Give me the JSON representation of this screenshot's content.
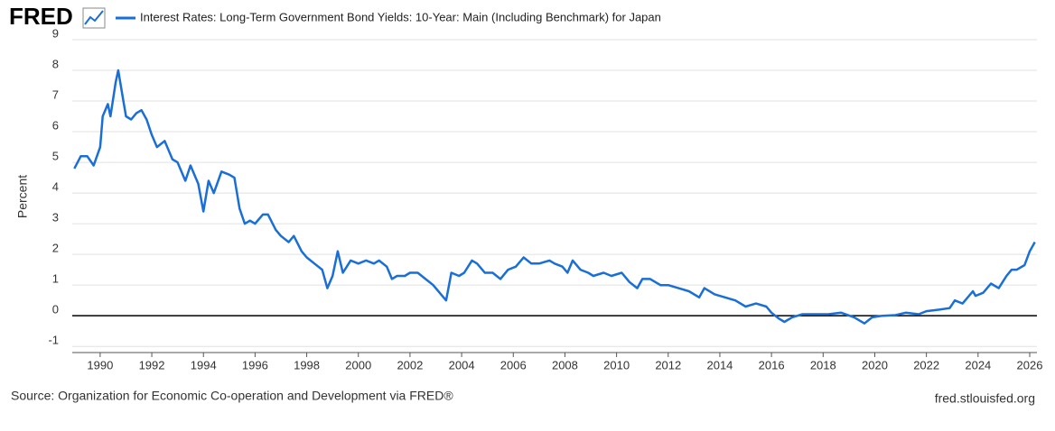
{
  "logo": "FRED",
  "source": "Source: Organization for Economic Co-operation and Development via FRED®",
  "site": "fred.stlouisfed.org",
  "chart_data": {
    "type": "line",
    "y_label": "Percent",
    "x": [
      1989.0,
      1989.25,
      1989.5,
      1989.75,
      1990.0,
      1990.1,
      1990.3,
      1990.4,
      1990.6,
      1990.7,
      1990.9,
      1991.0,
      1991.2,
      1991.4,
      1991.6,
      1991.8,
      1992.0,
      1992.2,
      1992.5,
      1992.8,
      1993.0,
      1993.3,
      1993.5,
      1993.8,
      1994.0,
      1994.2,
      1994.4,
      1994.7,
      1995.0,
      1995.2,
      1995.4,
      1995.6,
      1995.8,
      1996.0,
      1996.3,
      1996.5,
      1996.8,
      1997.0,
      1997.3,
      1997.5,
      1997.8,
      1998.0,
      1998.3,
      1998.6,
      1998.8,
      1999.0,
      1999.2,
      1999.4,
      1999.7,
      2000.0,
      2000.3,
      2000.6,
      2000.8,
      2001.1,
      2001.3,
      2001.5,
      2001.8,
      2002.0,
      2002.3,
      2002.6,
      2002.9,
      2003.2,
      2003.4,
      2003.6,
      2003.9,
      2004.1,
      2004.4,
      2004.6,
      2004.9,
      2005.2,
      2005.5,
      2005.8,
      2006.1,
      2006.4,
      2006.7,
      2007.0,
      2007.4,
      2007.6,
      2007.9,
      2008.1,
      2008.3,
      2008.6,
      2008.9,
      2009.1,
      2009.5,
      2009.8,
      2010.2,
      2010.5,
      2010.8,
      2011.0,
      2011.3,
      2011.7,
      2012.0,
      2012.4,
      2012.8,
      2013.2,
      2013.4,
      2013.8,
      2014.2,
      2014.6,
      2015.0,
      2015.4,
      2015.8,
      2016.0,
      2016.3,
      2016.5,
      2016.8,
      2017.2,
      2017.7,
      2018.2,
      2018.7,
      2019.2,
      2019.6,
      2019.9,
      2020.3,
      2020.8,
      2021.2,
      2021.7,
      2022.0,
      2022.5,
      2022.9,
      2023.1,
      2023.4,
      2023.8,
      2023.9,
      2024.2,
      2024.5,
      2024.8,
      2025.1,
      2025.3,
      2025.5,
      2025.8,
      2026.0,
      2026.2
    ],
    "series": [
      {
        "name": "Interest Rates: Long-Term Government Bond Yields: 10-Year: Main (Including Benchmark) for Japan",
        "color": "#1a6fd6",
        "values": [
          4.8,
          5.2,
          5.2,
          4.9,
          5.5,
          6.5,
          6.9,
          6.5,
          7.6,
          8.0,
          7.0,
          6.5,
          6.4,
          6.6,
          6.7,
          6.4,
          5.9,
          5.5,
          5.7,
          5.1,
          5.0,
          4.4,
          4.9,
          4.3,
          3.4,
          4.4,
          4.0,
          4.7,
          4.6,
          4.5,
          3.5,
          3.0,
          3.1,
          3.0,
          3.3,
          3.3,
          2.8,
          2.6,
          2.4,
          2.6,
          2.1,
          1.9,
          1.7,
          1.5,
          0.9,
          1.3,
          2.1,
          1.4,
          1.8,
          1.7,
          1.8,
          1.7,
          1.8,
          1.6,
          1.2,
          1.3,
          1.3,
          1.4,
          1.4,
          1.2,
          1.0,
          0.7,
          0.5,
          1.4,
          1.3,
          1.4,
          1.8,
          1.7,
          1.4,
          1.4,
          1.2,
          1.5,
          1.6,
          1.9,
          1.7,
          1.7,
          1.8,
          1.7,
          1.6,
          1.4,
          1.8,
          1.5,
          1.4,
          1.3,
          1.4,
          1.3,
          1.4,
          1.1,
          0.9,
          1.2,
          1.2,
          1.0,
          1.0,
          0.9,
          0.8,
          0.6,
          0.9,
          0.7,
          0.6,
          0.5,
          0.3,
          0.4,
          0.3,
          0.1,
          -0.1,
          -0.2,
          -0.05,
          0.05,
          0.05,
          0.05,
          0.1,
          -0.05,
          -0.25,
          -0.05,
          0.0,
          0.02,
          0.1,
          0.05,
          0.15,
          0.2,
          0.25,
          0.5,
          0.4,
          0.8,
          0.65,
          0.75,
          1.05,
          0.9,
          1.3,
          1.5,
          1.5,
          1.65,
          2.1,
          2.4
        ]
      }
    ],
    "xlim": [
      1988.92,
      2026.28
    ],
    "xticks": [
      1990,
      1992,
      1994,
      1996,
      1998,
      2000,
      2002,
      2004,
      2006,
      2008,
      2010,
      2012,
      2014,
      2016,
      2018,
      2020,
      2022,
      2024,
      2026
    ],
    "ylim": [
      -1.2,
      9
    ],
    "yticks": [
      -1,
      0,
      1,
      2,
      3,
      4,
      5,
      6,
      7,
      8,
      9
    ],
    "grid": true,
    "zero_line": true
  }
}
